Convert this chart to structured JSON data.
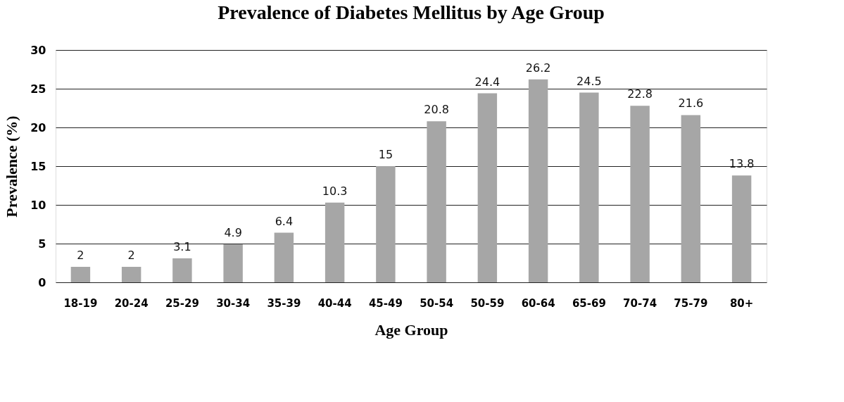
{
  "chart_data": {
    "type": "bar",
    "title": "Prevalence of Diabetes Mellitus by Age Group",
    "xlabel": "Age Group",
    "ylabel": "Prevalence (%)",
    "categories": [
      "18-19",
      "20-24",
      "25-29",
      "30-34",
      "35-39",
      "40-44",
      "45-49",
      "50-54",
      "50-59",
      "60-64",
      "65-69",
      "70-74",
      "75-79",
      "80+"
    ],
    "values": [
      2,
      2,
      3.1,
      4.9,
      6.4,
      10.3,
      15,
      20.8,
      24.4,
      26.2,
      24.5,
      22.8,
      21.6,
      13.8
    ],
    "color": "#a6a6a6",
    "ylim": [
      0,
      30
    ],
    "yticks": [
      0,
      5,
      10,
      15,
      20,
      25,
      30
    ],
    "grid": "y",
    "data_labels": true
  }
}
